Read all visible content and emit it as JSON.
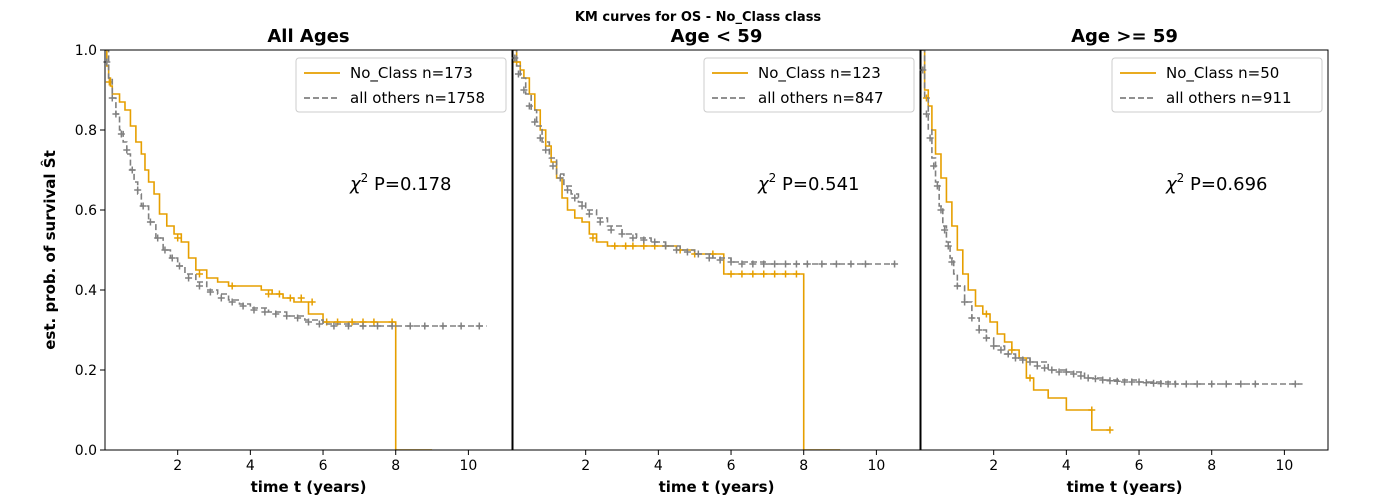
{
  "figure": {
    "suptitle": "KM curves for OS - No_Class class"
  },
  "colors": {
    "no_class": "#e69f00",
    "others": "#808080",
    "axes": "#000000"
  },
  "chart_data": [
    {
      "type": "line",
      "title": "All Ages",
      "xlabel": "time t (years)",
      "ylabel": "est. prob. of survival Ŝt",
      "xlim": [
        0,
        11.2
      ],
      "ylim": [
        0,
        1
      ],
      "xticks": [
        2,
        4,
        6,
        8,
        10
      ],
      "yticks": [
        0.0,
        0.2,
        0.4,
        0.6,
        0.8,
        1.0
      ],
      "legend_position": "top-right",
      "annotation": {
        "chi": "χ",
        "sup": "2",
        "rest": " P=0.178"
      },
      "series": [
        {
          "name": "No_Class n=173",
          "style": "solid",
          "x": [
            0,
            0.05,
            0.1,
            0.15,
            0.2,
            0.25,
            0.4,
            0.55,
            0.7,
            0.85,
            1.0,
            1.1,
            1.2,
            1.35,
            1.5,
            1.7,
            1.9,
            2.1,
            2.3,
            2.5,
            2.8,
            3.1,
            3.4,
            3.7,
            4.0,
            4.3,
            4.6,
            4.9,
            5.2,
            5.6,
            6.0,
            6.5,
            7.0,
            7.5,
            8.0,
            8.0,
            9.0
          ],
          "y": [
            1.0,
            0.96,
            0.93,
            0.91,
            0.89,
            0.89,
            0.87,
            0.85,
            0.81,
            0.77,
            0.74,
            0.7,
            0.67,
            0.64,
            0.59,
            0.56,
            0.54,
            0.52,
            0.48,
            0.45,
            0.43,
            0.42,
            0.41,
            0.41,
            0.41,
            0.4,
            0.39,
            0.38,
            0.37,
            0.34,
            0.32,
            0.32,
            0.32,
            0.32,
            0.32,
            0.0,
            0.0
          ],
          "censor_x": [
            0.12,
            2.0,
            2.6,
            3.5,
            4.5,
            4.8,
            5.1,
            5.4,
            5.7,
            6.1,
            6.4,
            6.8,
            7.1,
            7.4,
            7.9
          ],
          "censor_y": [
            0.92,
            0.53,
            0.44,
            0.41,
            0.39,
            0.39,
            0.38,
            0.38,
            0.37,
            0.32,
            0.32,
            0.32,
            0.32,
            0.32,
            0.32
          ]
        },
        {
          "name": "all others n=1758",
          "style": "dashed",
          "x": [
            0,
            0.1,
            0.2,
            0.3,
            0.4,
            0.5,
            0.6,
            0.7,
            0.8,
            0.9,
            1.0,
            1.2,
            1.4,
            1.6,
            1.8,
            2.0,
            2.2,
            2.5,
            2.8,
            3.1,
            3.4,
            3.7,
            4.0,
            4.5,
            5.0,
            5.5,
            6.0,
            7.0,
            8.0,
            9.0,
            10.5
          ],
          "y": [
            1.0,
            0.93,
            0.88,
            0.84,
            0.8,
            0.77,
            0.74,
            0.7,
            0.67,
            0.64,
            0.61,
            0.57,
            0.53,
            0.5,
            0.48,
            0.46,
            0.44,
            0.42,
            0.4,
            0.39,
            0.375,
            0.365,
            0.355,
            0.345,
            0.335,
            0.325,
            0.315,
            0.31,
            0.31,
            0.31,
            0.31
          ],
          "censor_x": [
            0.05,
            0.2,
            0.3,
            0.45,
            0.6,
            0.75,
            0.9,
            1.05,
            1.25,
            1.45,
            1.65,
            1.85,
            2.05,
            2.3,
            2.6,
            2.9,
            3.2,
            3.5,
            3.8,
            4.1,
            4.4,
            4.7,
            5.0,
            5.3,
            5.6,
            5.9,
            6.3,
            6.7,
            7.1,
            7.5,
            7.9,
            8.4,
            8.8,
            9.3,
            9.8,
            10.3
          ],
          "censor_y": [
            0.97,
            0.88,
            0.84,
            0.79,
            0.75,
            0.7,
            0.65,
            0.61,
            0.57,
            0.53,
            0.5,
            0.48,
            0.46,
            0.43,
            0.41,
            0.395,
            0.38,
            0.37,
            0.36,
            0.35,
            0.345,
            0.34,
            0.335,
            0.33,
            0.32,
            0.315,
            0.31,
            0.31,
            0.31,
            0.31,
            0.31,
            0.31,
            0.31,
            0.31,
            0.31,
            0.31
          ]
        }
      ]
    },
    {
      "type": "line",
      "title": "Age < 59",
      "xlabel": "time t (years)",
      "ylabel": "",
      "xlim": [
        0,
        11.2
      ],
      "ylim": [
        0,
        1
      ],
      "xticks": [
        2,
        4,
        6,
        8,
        10
      ],
      "yticks": [],
      "legend_position": "top-right",
      "annotation": {
        "chi": "χ",
        "sup": "2",
        "rest": " P=0.541"
      },
      "series": [
        {
          "name": "No_Class n=123",
          "style": "solid",
          "x": [
            0,
            0.1,
            0.2,
            0.3,
            0.45,
            0.6,
            0.75,
            0.9,
            1.05,
            1.2,
            1.35,
            1.5,
            1.7,
            1.9,
            2.1,
            2.3,
            2.6,
            3.0,
            3.5,
            4.0,
            4.5,
            5.0,
            5.5,
            5.8,
            6.5,
            7.0,
            7.5,
            8.0,
            8.0,
            9.0
          ],
          "y": [
            1.0,
            0.97,
            0.95,
            0.93,
            0.89,
            0.85,
            0.8,
            0.76,
            0.72,
            0.68,
            0.63,
            0.6,
            0.58,
            0.57,
            0.54,
            0.52,
            0.51,
            0.51,
            0.51,
            0.51,
            0.5,
            0.49,
            0.49,
            0.44,
            0.44,
            0.44,
            0.44,
            0.44,
            0.0,
            0.0
          ],
          "censor_x": [
            0.1,
            2.2,
            2.8,
            3.1,
            3.3,
            3.6,
            3.9,
            4.2,
            4.6,
            5.0,
            5.5,
            6.0,
            6.3,
            6.6,
            6.9,
            7.2,
            7.5,
            7.8
          ],
          "censor_y": [
            0.97,
            0.53,
            0.51,
            0.51,
            0.51,
            0.51,
            0.51,
            0.51,
            0.5,
            0.49,
            0.49,
            0.44,
            0.44,
            0.44,
            0.44,
            0.44,
            0.44,
            0.44
          ]
        },
        {
          "name": "all others n=847",
          "style": "dashed",
          "x": [
            0,
            0.1,
            0.2,
            0.35,
            0.5,
            0.65,
            0.8,
            1.0,
            1.2,
            1.4,
            1.6,
            1.8,
            2.0,
            2.3,
            2.6,
            3.0,
            3.4,
            3.8,
            4.2,
            4.6,
            5.0,
            5.5,
            6.0,
            7.0,
            8.0,
            9.0,
            10.5
          ],
          "y": [
            1.0,
            0.96,
            0.93,
            0.89,
            0.85,
            0.81,
            0.77,
            0.73,
            0.69,
            0.66,
            0.64,
            0.62,
            0.6,
            0.58,
            0.56,
            0.54,
            0.53,
            0.52,
            0.51,
            0.5,
            0.49,
            0.48,
            0.47,
            0.465,
            0.465,
            0.465,
            0.465
          ],
          "censor_x": [
            0.05,
            0.15,
            0.3,
            0.45,
            0.6,
            0.75,
            0.9,
            1.1,
            1.3,
            1.5,
            1.7,
            1.9,
            2.1,
            2.4,
            2.7,
            3.0,
            3.3,
            3.6,
            3.9,
            4.2,
            4.5,
            4.8,
            5.1,
            5.4,
            5.7,
            6.0,
            6.3,
            6.6,
            6.9,
            7.2,
            7.5,
            7.8,
            8.1,
            8.5,
            8.9,
            9.3,
            9.7,
            10.5
          ],
          "censor_y": [
            0.98,
            0.94,
            0.9,
            0.86,
            0.82,
            0.78,
            0.75,
            0.71,
            0.68,
            0.65,
            0.63,
            0.61,
            0.59,
            0.57,
            0.55,
            0.54,
            0.53,
            0.525,
            0.52,
            0.51,
            0.5,
            0.495,
            0.49,
            0.48,
            0.475,
            0.47,
            0.465,
            0.465,
            0.465,
            0.465,
            0.465,
            0.465,
            0.465,
            0.465,
            0.465,
            0.465,
            0.465,
            0.465
          ]
        }
      ]
    },
    {
      "type": "line",
      "title": "Age >= 59",
      "xlabel": "time t (years)",
      "ylabel": "",
      "xlim": [
        0,
        11.2
      ],
      "ylim": [
        0,
        1
      ],
      "xticks": [
        2,
        4,
        6,
        8,
        10
      ],
      "yticks": [],
      "legend_position": "top-right",
      "annotation": {
        "chi": "χ",
        "sup": "2",
        "rest": " P=0.696"
      },
      "series": [
        {
          "name": "No_Class n=50",
          "style": "solid",
          "x": [
            0,
            0.1,
            0.2,
            0.3,
            0.4,
            0.55,
            0.7,
            0.85,
            1.0,
            1.15,
            1.3,
            1.5,
            1.7,
            1.9,
            2.1,
            2.3,
            2.5,
            2.7,
            2.9,
            3.1,
            3.5,
            3.9,
            4.0,
            4.7,
            5.2
          ],
          "y": [
            1.0,
            0.9,
            0.86,
            0.8,
            0.74,
            0.68,
            0.62,
            0.56,
            0.5,
            0.44,
            0.4,
            0.36,
            0.34,
            0.32,
            0.29,
            0.27,
            0.25,
            0.23,
            0.18,
            0.15,
            0.13,
            0.13,
            0.1,
            0.05,
            0.05
          ],
          "censor_x": [
            0.15,
            1.8,
            2.5,
            3.0,
            4.7,
            5.2
          ],
          "censor_y": [
            0.88,
            0.34,
            0.25,
            0.18,
            0.1,
            0.05
          ]
        },
        {
          "name": "all others n=911",
          "style": "dashed",
          "x": [
            0,
            0.1,
            0.2,
            0.3,
            0.4,
            0.5,
            0.6,
            0.7,
            0.8,
            0.9,
            1.0,
            1.2,
            1.4,
            1.6,
            1.8,
            2.0,
            2.3,
            2.6,
            3.0,
            3.5,
            4.0,
            4.5,
            5.0,
            6.0,
            7.0,
            8.0,
            9.0,
            10.5
          ],
          "y": [
            1.0,
            0.88,
            0.8,
            0.73,
            0.67,
            0.61,
            0.56,
            0.52,
            0.48,
            0.44,
            0.41,
            0.37,
            0.33,
            0.3,
            0.28,
            0.26,
            0.24,
            0.23,
            0.22,
            0.2,
            0.195,
            0.18,
            0.175,
            0.17,
            0.165,
            0.165,
            0.165,
            0.165
          ],
          "censor_x": [
            0.05,
            0.15,
            0.25,
            0.35,
            0.45,
            0.55,
            0.65,
            0.75,
            0.85,
            1.0,
            1.2,
            1.4,
            1.6,
            1.8,
            2.0,
            2.2,
            2.4,
            2.6,
            2.8,
            3.0,
            3.2,
            3.4,
            3.6,
            3.8,
            4.0,
            4.2,
            4.4,
            4.6,
            4.8,
            5.0,
            5.2,
            5.4,
            5.6,
            5.8,
            6.0,
            6.2,
            6.4,
            6.6,
            6.8,
            7.0,
            7.3,
            7.6,
            8.0,
            8.4,
            8.8,
            9.2,
            10.3
          ],
          "censor_y": [
            0.95,
            0.84,
            0.78,
            0.71,
            0.66,
            0.6,
            0.55,
            0.51,
            0.47,
            0.41,
            0.37,
            0.33,
            0.3,
            0.28,
            0.26,
            0.25,
            0.24,
            0.23,
            0.225,
            0.22,
            0.21,
            0.205,
            0.2,
            0.195,
            0.195,
            0.19,
            0.185,
            0.18,
            0.178,
            0.175,
            0.173,
            0.172,
            0.17,
            0.17,
            0.17,
            0.168,
            0.167,
            0.166,
            0.165,
            0.165,
            0.165,
            0.165,
            0.165,
            0.165,
            0.165,
            0.165,
            0.165
          ]
        }
      ]
    }
  ]
}
